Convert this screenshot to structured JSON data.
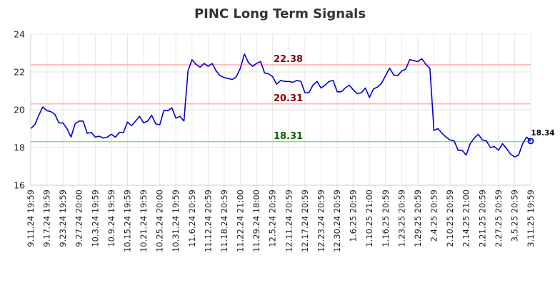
{
  "chart_data": {
    "type": "line",
    "title": "PINC Long Term Signals",
    "xlabel": "",
    "ylabel": "",
    "ylim": [
      16,
      24
    ],
    "yticks": [
      16,
      18,
      20,
      22,
      24
    ],
    "grid": true,
    "x_tick_labels": [
      "9.11.24 19:59",
      "9.17.24 19:59",
      "9.23.24 19:59",
      "9.27.24 20:00",
      "10.3.24 19:59",
      "10.9.24 19:59",
      "10.15.24 19:59",
      "10.21.24 19:59",
      "10.25.24 20:00",
      "10.31.24 19:59",
      "11.6.24 20:59",
      "11.12.24 20:59",
      "11.18.24 20:59",
      "11.22.24 21:00",
      "11.29.24 18:00",
      "12.5.24 20:59",
      "12.11.24 20:59",
      "12.17.24 20:59",
      "12.23.24 20:59",
      "12.30.24 20:59",
      "1.6.25 20:59",
      "1.10.25 21:00",
      "1.16.25 20:59",
      "1.23.25 20:59",
      "1.29.25 20:59",
      "2.4.25 20:59",
      "2.10.25 20:59",
      "2.14.25 21:00",
      "2.21.25 20:59",
      "2.27.25 20:59",
      "3.5.25 20:59",
      "3.11.25 19:59"
    ],
    "series": [
      {
        "name": "",
        "color": "#0000cc",
        "values": [
          19.0,
          19.2,
          19.7,
          20.15,
          19.95,
          19.9,
          19.75,
          19.3,
          19.3,
          19.0,
          18.55,
          19.25,
          19.4,
          19.4,
          18.75,
          18.8,
          18.55,
          18.6,
          18.5,
          18.55,
          18.7,
          18.55,
          18.8,
          18.8,
          19.35,
          19.15,
          19.4,
          19.65,
          19.3,
          19.4,
          19.7,
          19.25,
          19.2,
          19.95,
          19.95,
          20.1,
          19.55,
          19.65,
          19.4,
          22.05,
          22.65,
          22.4,
          22.25,
          22.45,
          22.3,
          22.45,
          22.05,
          21.8,
          21.7,
          21.65,
          21.6,
          21.75,
          22.2,
          22.95,
          22.5,
          22.3,
          22.45,
          22.55,
          21.95,
          21.9,
          21.75,
          21.35,
          21.55,
          21.5,
          21.5,
          21.45,
          21.55,
          21.5,
          20.9,
          20.9,
          21.3,
          21.5,
          21.15,
          21.3,
          21.5,
          21.55,
          20.95,
          20.95,
          21.15,
          21.3,
          21.05,
          20.85,
          20.9,
          21.15,
          20.65,
          21.1,
          21.2,
          21.4,
          21.8,
          22.2,
          21.85,
          21.8,
          22.05,
          22.15,
          22.65,
          22.6,
          22.55,
          22.7,
          22.4,
          22.2,
          18.9,
          19.0,
          18.75,
          18.55,
          18.4,
          18.35,
          17.85,
          17.85,
          17.6,
          18.2,
          18.5,
          18.7,
          18.4,
          18.35,
          18.0,
          18.05,
          17.85,
          18.2,
          17.95,
          17.65,
          17.5,
          17.6,
          18.2,
          18.55,
          18.34
        ]
      }
    ],
    "signals": [
      {
        "value": 22.38,
        "label": "22.38",
        "line_color": "#ffb3b3",
        "text_color": "#8b0000"
      },
      {
        "value": 20.31,
        "label": "20.31",
        "line_color": "#ffb3b3",
        "text_color": "#8b0000"
      },
      {
        "value": 18.31,
        "label": "18.31",
        "line_color": "#80e080",
        "text_color": "#006400"
      }
    ],
    "last_value": 18.34,
    "last_label": "18.34"
  }
}
